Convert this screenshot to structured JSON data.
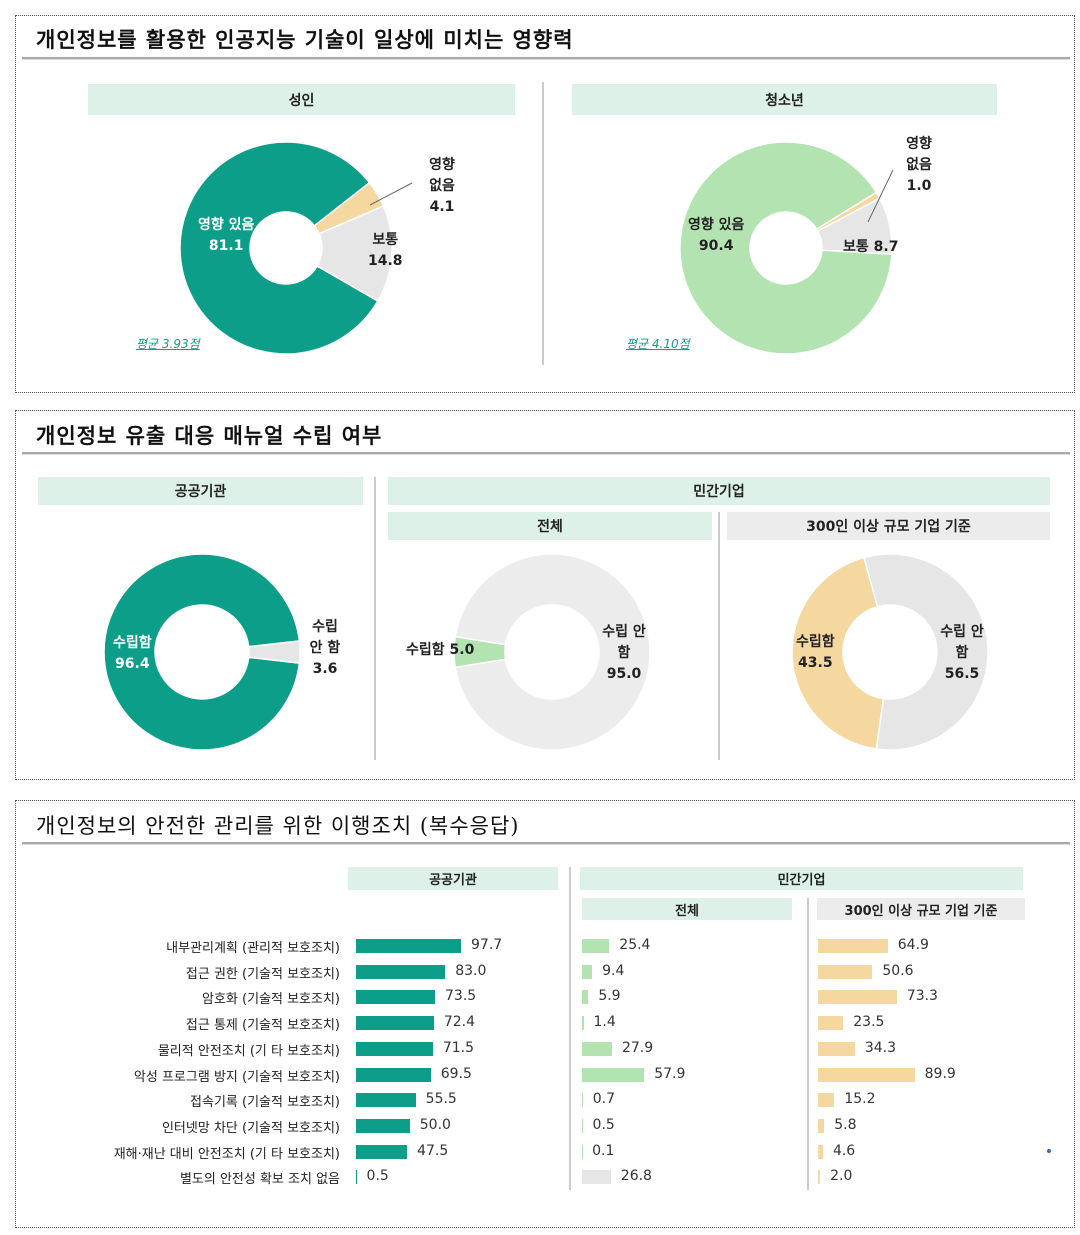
{
  "colors": {
    "teal": "#0d9e8a",
    "light_green": "#b2e3b0",
    "peach": "#f5d7a0",
    "gray": "#e6e6e6",
    "header": "#ddf1e8"
  },
  "section1": {
    "title": "개인정보를 활용한 인공지능 기술이 일상에 미치는 영향력",
    "adult_header": "성인",
    "teen_header": "청소년",
    "adult_avg": "평균 3.93점",
    "teen_avg": "평균 4.10점"
  },
  "section2": {
    "title": "개인정보 유출 대응 매뉴얼 수립 여부",
    "public_header": "공공기관",
    "private_header": "민간기업",
    "total_header": "전체",
    "large_header": "300인 이상 규모 기업 기준"
  },
  "section3": {
    "title": "개인정보의 안전한 관리를 위한 이행조치 (복수응답)",
    "public_header": "공공기관",
    "private_header": "민간기업",
    "total_header": "전체",
    "large_header": "300인 이상 규모 기업 기준"
  },
  "chart_data": [
    {
      "type": "pie",
      "title": "성인",
      "slices": [
        {
          "label": "영향 있음",
          "value": 81.1,
          "color": "#0d9e8a"
        },
        {
          "label": "영향 없음",
          "value": 4.1,
          "color": "#f5d7a0"
        },
        {
          "label": "보통",
          "value": 14.8,
          "color": "#e6e6e6"
        }
      ]
    },
    {
      "type": "pie",
      "title": "청소년",
      "slices": [
        {
          "label": "영향 있음",
          "value": 90.4,
          "color": "#b2e3b0"
        },
        {
          "label": "영향 없음",
          "value": 1.0,
          "color": "#f5d7a0"
        },
        {
          "label": "보통",
          "value": 8.7,
          "color": "#e6e6e6"
        }
      ]
    },
    {
      "type": "pie",
      "title": "공공기관",
      "slices": [
        {
          "label": "수립함",
          "value": 96.4,
          "color": "#0d9e8a"
        },
        {
          "label": "수립 안 함",
          "value": 3.6,
          "color": "#e6e6e6"
        }
      ]
    },
    {
      "type": "pie",
      "title": "민간기업 전체",
      "slices": [
        {
          "label": "수립함",
          "value": 5.0,
          "color": "#b2e3b0"
        },
        {
          "label": "수립 안 함",
          "value": 95.0,
          "color": "#ececec"
        }
      ]
    },
    {
      "type": "pie",
      "title": "300인 이상 규모 기업 기준",
      "slices": [
        {
          "label": "수립함",
          "value": 43.5,
          "color": "#f5d7a0"
        },
        {
          "label": "수립 안 함",
          "value": 56.5,
          "color": "#e6e6e6"
        }
      ]
    },
    {
      "type": "bar",
      "orientation": "horizontal",
      "categories": [
        "내부관리계획 (관리적 보호조치)",
        "접근 권한 (기술적 보호조치)",
        "암호화 (기술적 보호조치)",
        "접근 통제 (기술적 보호조치)",
        "물리적 안전조치 (기  타 보호조치)",
        "악성 프로그램 방지 (기술적 보호조치)",
        "접속기록 (기술적 보호조치)",
        "인터넷망 차단 (기술적 보호조치)",
        "재해·재난 대비 안전조치 (기  타 보호조치)",
        "별도의 안전성 확보 조치 없음"
      ],
      "series": [
        {
          "name": "공공기관",
          "color": "#0d9e8a",
          "values": [
            97.7,
            83.0,
            73.5,
            72.4,
            71.5,
            69.5,
            55.5,
            50.0,
            47.5,
            0.5
          ]
        },
        {
          "name": "민간기업 전체",
          "color": "#b2e3b0",
          "values": [
            25.4,
            9.4,
            5.9,
            1.4,
            27.9,
            57.9,
            0.7,
            0.5,
            0.1,
            26.8
          ]
        },
        {
          "name": "300인 이상 규모 기업 기준",
          "color": "#f5d7a0",
          "values": [
            64.9,
            50.6,
            73.3,
            23.5,
            34.3,
            89.9,
            15.2,
            5.8,
            4.6,
            2.0
          ]
        }
      ]
    }
  ]
}
